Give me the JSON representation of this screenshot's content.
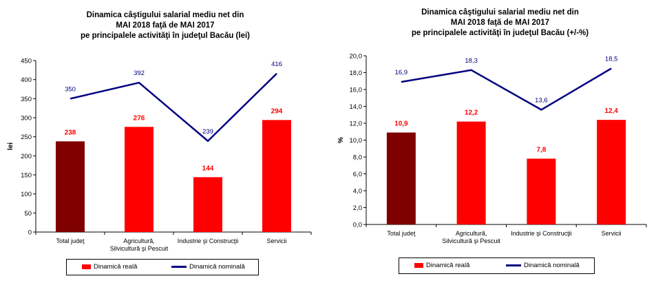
{
  "chart_data": [
    {
      "type": "bar",
      "title_lines": [
        "Dinamica câştigului salarial mediu net din",
        "MAI 2018 faţă de MAI 2017",
        "pe principalele activităţi în judeţul Bacău (lei)"
      ],
      "ylabel": "lei",
      "ylim": [
        0,
        450
      ],
      "yticks": [
        "0",
        "50",
        "100",
        "150",
        "200",
        "250",
        "300",
        "350",
        "400",
        "450"
      ],
      "ytick_values": [
        0,
        50,
        100,
        150,
        200,
        250,
        300,
        350,
        400,
        450
      ],
      "categories": [
        [
          "Total judeţ"
        ],
        [
          "Agricultură,",
          "Silvicultură şi Pescuit"
        ],
        [
          "Industrie şi Construcţii"
        ],
        [
          "Servicii"
        ]
      ],
      "series": [
        {
          "name": "Dinamică reală",
          "kind": "bar",
          "values": [
            238,
            276,
            144,
            294
          ],
          "labels": [
            "238",
            "276",
            "144",
            "294"
          ],
          "colors": [
            "#800000",
            "#ff0000",
            "#ff0000",
            "#ff0000"
          ],
          "label_color": "#ff0000"
        },
        {
          "name": "Dinamică nominală",
          "kind": "line",
          "values": [
            350,
            392,
            239,
            416
          ],
          "labels": [
            "350",
            "392",
            "239",
            "416"
          ],
          "color": "#000080"
        }
      ],
      "legend": "bottom"
    },
    {
      "type": "bar",
      "title_lines": [
        "Dinamica câştigului salarial mediu net din",
        "MAI 2018 faţă de MAI 2017",
        "pe principalele activităţi în judeţul Bacău (+/-%)"
      ],
      "ylabel": "%",
      "ylim": [
        0,
        20
      ],
      "yticks": [
        "0,0",
        "2,0",
        "4,0",
        "6,0",
        "8,0",
        "10,0",
        "12,0",
        "14,0",
        "16,0",
        "18,0",
        "20,0"
      ],
      "ytick_values": [
        0,
        2,
        4,
        6,
        8,
        10,
        12,
        14,
        16,
        18,
        20
      ],
      "categories": [
        [
          "Total judeţ"
        ],
        [
          "Agricultură,",
          "Silvicultură şi Pescuit"
        ],
        [
          "Industrie şi Construcţii"
        ],
        [
          "Servicii"
        ]
      ],
      "series": [
        {
          "name": "Dinamică reală",
          "kind": "bar",
          "values": [
            10.9,
            12.2,
            7.8,
            12.4
          ],
          "labels": [
            "10,9",
            "12,2",
            "7,8",
            "12,4"
          ],
          "colors": [
            "#800000",
            "#ff0000",
            "#ff0000",
            "#ff0000"
          ],
          "label_color": "#ff0000"
        },
        {
          "name": "Dinamică nominală",
          "kind": "line",
          "values": [
            16.9,
            18.3,
            13.6,
            18.5
          ],
          "labels": [
            "16,9",
            "18,3",
            "13,6",
            "18,5"
          ],
          "color": "#000080"
        }
      ],
      "legend": "bottom"
    }
  ]
}
